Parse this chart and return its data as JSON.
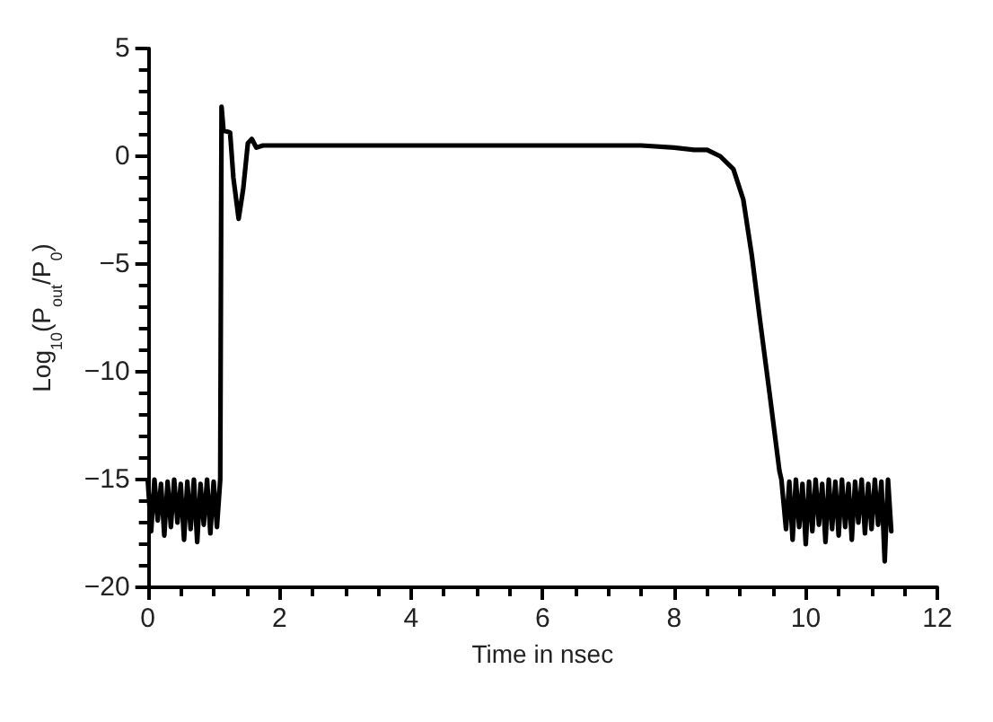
{
  "chart_data": {
    "type": "line",
    "xlabel": "Time in nsec",
    "ylabel": "Log$_{10}$(P$_{out}$/P$_{0}$)",
    "x": [
      0,
      0.05,
      0.1,
      0.15,
      0.2,
      0.25,
      0.3,
      0.35,
      0.4,
      0.45,
      0.5,
      0.55,
      0.6,
      0.65,
      0.7,
      0.75,
      0.8,
      0.85,
      0.9,
      0.95,
      1,
      1.05,
      1.1,
      1.12,
      1.15,
      1.25,
      1.3,
      1.38,
      1.45,
      1.52,
      1.58,
      1.65,
      1.75,
      2,
      4,
      6,
      7.5,
      8,
      8.3,
      8.5,
      8.7,
      8.9,
      9.05,
      9.18,
      9.3,
      9.45,
      9.6,
      9.63,
      9.7,
      9.75,
      9.8,
      9.85,
      9.9,
      9.95,
      10,
      10.05,
      10.1,
      10.15,
      10.2,
      10.25,
      10.3,
      10.35,
      10.4,
      10.45,
      10.5,
      10.55,
      10.6,
      10.65,
      10.7,
      10.75,
      10.8,
      10.85,
      10.9,
      10.95,
      11,
      11.05,
      11.1,
      11.15,
      11.2,
      11.25,
      11.3
    ],
    "series": [
      {
        "color": "#000000",
        "values": [
          -15.1,
          -17.4,
          -15.0,
          -16.9,
          -15.2,
          -17.6,
          -15.1,
          -17.2,
          -15.0,
          -17.0,
          -15.2,
          -17.8,
          -15.1,
          -17.3,
          -15.0,
          -17.9,
          -15.2,
          -17.1,
          -15.0,
          -17.5,
          -15.1,
          -17.2,
          -15.0,
          2.3,
          1.2,
          1.1,
          -1.0,
          -2.9,
          -1.5,
          0.6,
          0.8,
          0.4,
          0.5,
          0.5,
          0.5,
          0.5,
          0.5,
          0.4,
          0.3,
          0.3,
          0.0,
          -0.6,
          -2.0,
          -4.6,
          -7.5,
          -11.0,
          -14.6,
          -15.0,
          -17.3,
          -15.1,
          -17.8,
          -15.0,
          -17.2,
          -15.2,
          -18.0,
          -15.1,
          -17.4,
          -15.0,
          -17.1,
          -15.2,
          -17.9,
          -15.0,
          -17.3,
          -15.1,
          -17.6,
          -15.0,
          -17.2,
          -15.2,
          -17.8,
          -15.1,
          -17.0,
          -15.0,
          -17.5,
          -15.2,
          -17.3,
          -15.0,
          -17.1,
          -15.1,
          -18.8,
          -15.0,
          -17.4
        ]
      }
    ],
    "xlim": [
      0,
      12
    ],
    "xticks": [
      0,
      2,
      4,
      6,
      8,
      10,
      12
    ],
    "ylim": [
      -20,
      5
    ],
    "yticks": [
      -20,
      -15,
      -10,
      -5,
      0,
      5
    ],
    "grid": false,
    "marker": "none",
    "line_style": "solid"
  }
}
